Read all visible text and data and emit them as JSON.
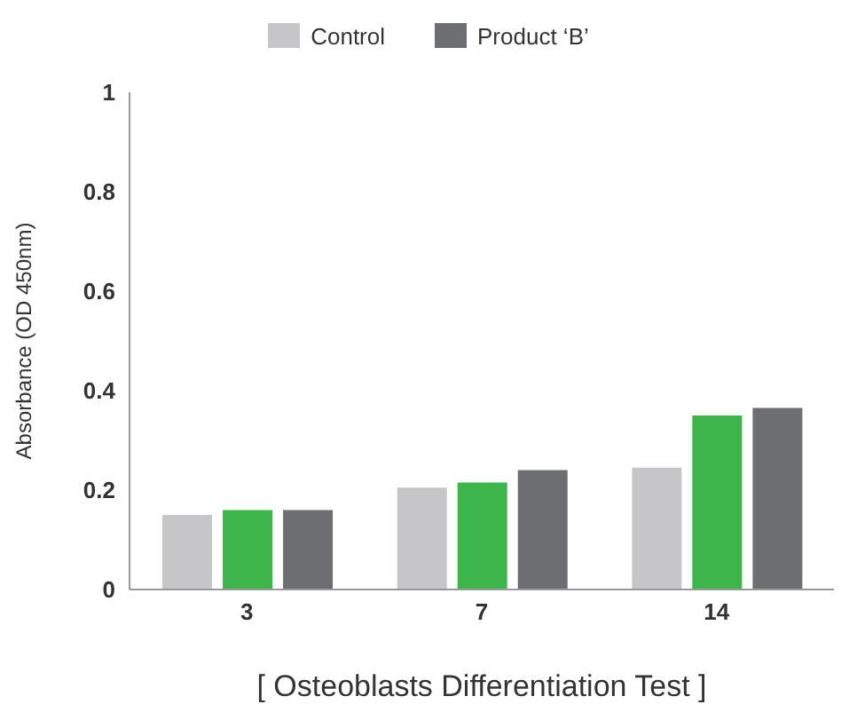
{
  "chart_data": {
    "type": "bar",
    "xlabel": "[ Osteoblasts Differentiation Test ]",
    "ylabel": "Absorbance (OD 450nm)",
    "categories": [
      "3",
      "7",
      "14"
    ],
    "series": [
      {
        "name": "Control",
        "color": "#c6c6c8",
        "values": [
          0.15,
          0.205,
          0.245
        ]
      },
      {
        "color": "#3db54a",
        "values": [
          0.16,
          0.215,
          0.35
        ]
      },
      {
        "name": "Product ‘B’",
        "color": "#6d6e71",
        "values": [
          0.16,
          0.24,
          0.365
        ]
      }
    ],
    "ylim": [
      0,
      1
    ],
    "yticks": [
      0,
      0.2,
      0.4,
      0.6,
      0.8,
      1
    ],
    "grid": false,
    "legend": "top"
  }
}
